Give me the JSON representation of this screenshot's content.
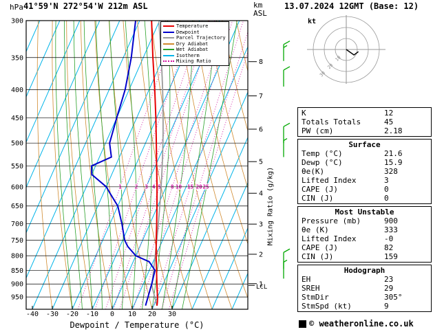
{
  "header": {
    "station": "41°59'N 272°54'W 212m ASL",
    "datetime": "13.07.2024 12GMT (Base: 12)"
  },
  "colors": {
    "temperature": "#e60000",
    "dewpoint": "#0000cc",
    "parcel": "#9a9a9a",
    "dry_adiabat": "#d08a2e",
    "wet_adiabat": "#28a028",
    "isotherm": "#00b4e8",
    "mixing_ratio": "#d010a0",
    "wind_barb": "#00a800",
    "grid": "#000000"
  },
  "legend": [
    {
      "label": "Temperature",
      "color": "#e60000",
      "style": "solid"
    },
    {
      "label": "Dewpoint",
      "color": "#0000cc",
      "style": "solid"
    },
    {
      "label": "Parcel Trajectory",
      "color": "#9a9a9a",
      "style": "solid"
    },
    {
      "label": "Dry Adiabat",
      "color": "#d08a2e",
      "style": "solid"
    },
    {
      "label": "Wet Adiabat",
      "color": "#28a028",
      "style": "solid"
    },
    {
      "label": "Isotherm",
      "color": "#00b4e8",
      "style": "solid"
    },
    {
      "label": "Mixing Ratio",
      "color": "#d010a0",
      "style": "dotted"
    }
  ],
  "chart_data": {
    "type": "skewt-logp",
    "xlabel": "Dewpoint / Temperature (°C)",
    "pressure_unit": "hPa",
    "height_unit_line1": "km",
    "height_unit_line2": "ASL",
    "right_axis_label": "Mixing Ratio (g/kg)",
    "lcl_label": "LCL",
    "pressure_ticks_hPa": [
      300,
      350,
      400,
      450,
      500,
      550,
      600,
      650,
      700,
      750,
      800,
      850,
      900,
      950
    ],
    "temp_ticks_C": [
      -40,
      -30,
      -20,
      -10,
      0,
      10,
      20,
      30
    ],
    "km_ticks": [
      1,
      2,
      3,
      4,
      5,
      6,
      7,
      8
    ],
    "pressure_range_hPa": [
      300,
      1000
    ],
    "isotherm_step_C": 10,
    "dry_adiabat_step_C": 10,
    "wet_adiabat_step_C": 5,
    "mixing_ratio_lines_gkg": [
      1,
      2,
      3,
      4,
      5,
      8,
      10,
      15,
      20,
      25
    ],
    "temperature_profile_p_t": [
      [
        985,
        21.6
      ],
      [
        970,
        21.0
      ],
      [
        950,
        20.0
      ],
      [
        925,
        18.4
      ],
      [
        900,
        16.8
      ],
      [
        850,
        13.6
      ],
      [
        800,
        10.2
      ],
      [
        750,
        6.8
      ],
      [
        700,
        3.4
      ],
      [
        650,
        -0.4
      ],
      [
        600,
        -4.6
      ],
      [
        550,
        -9.4
      ],
      [
        500,
        -14.6
      ],
      [
        450,
        -20.4
      ],
      [
        400,
        -27.2
      ],
      [
        350,
        -35.2
      ],
      [
        300,
        -44.0
      ]
    ],
    "dewpoint_profile_p_t": [
      [
        985,
        15.9
      ],
      [
        950,
        15.2
      ],
      [
        900,
        14.2
      ],
      [
        850,
        12.8
      ],
      [
        820,
        8.0
      ],
      [
        800,
        0.0
      ],
      [
        770,
        -6.0
      ],
      [
        750,
        -9.0
      ],
      [
        700,
        -14.0
      ],
      [
        650,
        -20.0
      ],
      [
        620,
        -26.0
      ],
      [
        600,
        -30.0
      ],
      [
        570,
        -40.0
      ],
      [
        550,
        -42.0
      ],
      [
        530,
        -34.0
      ],
      [
        500,
        -38.0
      ],
      [
        450,
        -40.0
      ],
      [
        400,
        -42.0
      ],
      [
        350,
        -46.0
      ],
      [
        300,
        -52.0
      ]
    ],
    "parcel": {
      "surface_p": 985,
      "surface_t": 21.6,
      "surface_td": 15.9
    },
    "wind_barbs": [
      {
        "p": 355,
        "kt": 15
      },
      {
        "p": 395,
        "kt": 10
      },
      {
        "p": 500,
        "kt": 10
      },
      {
        "p": 530,
        "kt": 5
      },
      {
        "p": 845,
        "kt": 10
      },
      {
        "p": 880,
        "kt": 5
      }
    ],
    "hodograph": {
      "unit": "kt",
      "rings_kt": [
        10,
        20,
        30
      ],
      "trace_uv_kt": [
        [
          0,
          0
        ],
        [
          7,
          -5
        ],
        [
          11,
          -2
        ]
      ]
    }
  },
  "panel": {
    "indices": {
      "rows": [
        {
          "label": "K",
          "value": "12"
        },
        {
          "label": "Totals Totals",
          "value": "45"
        },
        {
          "label": "PW (cm)",
          "value": "2.18"
        }
      ]
    },
    "surface": {
      "title": "Surface",
      "rows": [
        {
          "label": "Temp (°C)",
          "value": "21.6"
        },
        {
          "label": "Dewp (°C)",
          "value": "15.9"
        },
        {
          "label": "θe(K)",
          "value": "328"
        },
        {
          "label": "Lifted Index",
          "value": "3"
        },
        {
          "label": "CAPE (J)",
          "value": "0"
        },
        {
          "label": "CIN (J)",
          "value": "0"
        }
      ]
    },
    "most_unstable": {
      "title": "Most Unstable",
      "rows": [
        {
          "label": "Pressure (mb)",
          "value": "900"
        },
        {
          "label": "θe (K)",
          "value": "333"
        },
        {
          "label": "Lifted Index",
          "value": "-0"
        },
        {
          "label": "CAPE (J)",
          "value": "82"
        },
        {
          "label": "CIN (J)",
          "value": "159"
        }
      ]
    },
    "hodograph": {
      "title": "Hodograph",
      "rows": [
        {
          "label": "EH",
          "value": "23"
        },
        {
          "label": "SREH",
          "value": "29"
        },
        {
          "label": "StmDir",
          "value": "305°"
        },
        {
          "label": "StmSpd (kt)",
          "value": "9"
        }
      ]
    }
  },
  "footer": {
    "copyright": "© weatheronline.co.uk"
  }
}
